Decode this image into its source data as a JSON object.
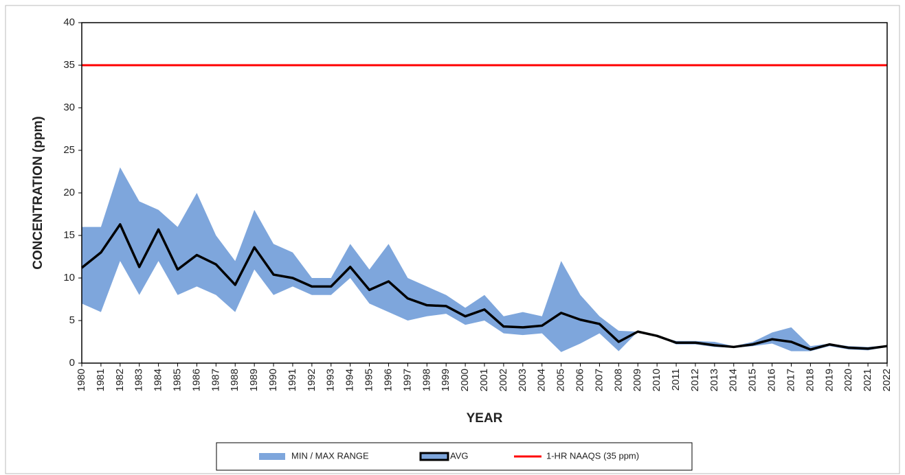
{
  "chart_data": {
    "type": "line",
    "x_label": "YEAR",
    "y_label": "CONCENTRATION (ppm)",
    "categories": [
      "1980",
      "1981",
      "1982",
      "1983",
      "1984",
      "1985",
      "1986",
      "1987",
      "1988",
      "1989",
      "1990",
      "1991",
      "1992",
      "1993",
      "1994",
      "1995",
      "1996",
      "1997",
      "1998",
      "1999",
      "2000",
      "2001",
      "2002",
      "2003",
      "2004",
      "2005",
      "2006",
      "2007",
      "2008",
      "2009",
      "2010",
      "2011",
      "2012",
      "2013",
      "2014",
      "2015",
      "2016",
      "2017",
      "2018",
      "2019",
      "2020",
      "2021",
      "2022"
    ],
    "ylim": [
      0,
      40
    ],
    "yticks": [
      0,
      5,
      10,
      15,
      20,
      25,
      30,
      35,
      40
    ],
    "series": [
      {
        "name": "MIN / MAX RANGE",
        "type": "band",
        "color": "#7ea6dc",
        "low": [
          7,
          6,
          12,
          8,
          12,
          8,
          9,
          8,
          6,
          11,
          8,
          9,
          8,
          8,
          10,
          7,
          6,
          5,
          5.5,
          5.8,
          4.5,
          5,
          3.5,
          3.3,
          3.5,
          1.3,
          2.3,
          3.5,
          1.4,
          3.7,
          3.2,
          2.2,
          2.2,
          1.9,
          1.8,
          2,
          2.3,
          1.4,
          1.4,
          2,
          1.6,
          1.5,
          1.9
        ],
        "high": [
          16,
          16,
          23,
          19,
          18,
          16,
          20,
          15,
          12,
          18,
          14,
          13,
          10,
          10,
          14,
          11,
          14,
          10,
          9,
          8,
          6.5,
          8,
          5.5,
          6,
          5.5,
          12,
          8,
          5.5,
          3.8,
          3.7,
          3.2,
          2.6,
          2.6,
          2.5,
          2,
          2.5,
          3.6,
          4.2,
          2,
          2.3,
          2,
          1.9,
          2.1
        ]
      },
      {
        "name": "AVG",
        "type": "line",
        "color": "#000000",
        "values": [
          11.2,
          13,
          16.3,
          11.3,
          15.7,
          11,
          12.7,
          11.6,
          9.2,
          13.6,
          10.4,
          10,
          9,
          9,
          11.3,
          8.6,
          9.6,
          7.6,
          6.8,
          6.7,
          5.5,
          6.3,
          4.3,
          4.2,
          4.4,
          5.9,
          5.1,
          4.6,
          2.5,
          3.7,
          3.2,
          2.4,
          2.4,
          2.1,
          1.9,
          2.2,
          2.8,
          2.5,
          1.6,
          2.2,
          1.8,
          1.7,
          2
        ]
      },
      {
        "name": "1-HR NAAQS (35 ppm)",
        "type": "hline",
        "color": "#ff0000",
        "value": 35
      }
    ]
  }
}
